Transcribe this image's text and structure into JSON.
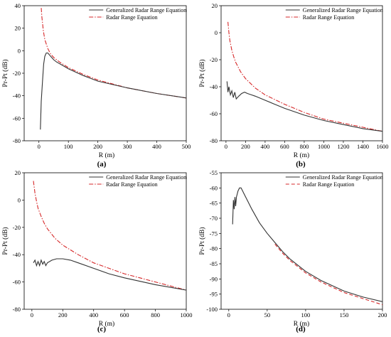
{
  "chart_data": [
    {
      "type": "line",
      "panel_label": "(a)",
      "xlabel": "R (m)",
      "ylabel": "Pr-Pt (dB)",
      "xlim": [
        -50,
        500
      ],
      "ylim": [
        -80,
        40
      ],
      "xticks": [
        0,
        100,
        200,
        300,
        400,
        500
      ],
      "yticks": [
        -80,
        -60,
        -40,
        -20,
        0,
        20,
        40
      ],
      "legend_position": "top-right",
      "series": [
        {
          "name": "Generalized Radar Range Equation",
          "color": "#333333",
          "dash": "solid",
          "x": [
            5,
            8,
            12,
            16,
            20,
            25,
            30,
            40,
            50,
            60,
            80,
            100,
            150,
            200,
            300,
            400,
            500
          ],
          "y": [
            -70,
            -45,
            -28,
            -12,
            -5,
            -2,
            -2,
            -5,
            -8,
            -10,
            -13,
            -16,
            -22,
            -27,
            -33,
            -38,
            -42
          ]
        },
        {
          "name": "Radar Range Equation",
          "color": "#d62728",
          "dash": "dashdot",
          "x": [
            8,
            10,
            15,
            20,
            30,
            40,
            50,
            70,
            100,
            150,
            200,
            300,
            400,
            500
          ],
          "y": [
            38,
            30,
            18,
            10,
            2,
            -3,
            -6,
            -10,
            -15,
            -21,
            -26,
            -33,
            -38,
            -42
          ]
        }
      ]
    },
    {
      "type": "line",
      "panel_label": "(b)",
      "xlabel": "R (m)",
      "ylabel": "Pr-Pt (dB)",
      "xlim": [
        -50,
        1600
      ],
      "ylim": [
        -80,
        20
      ],
      "xticks": [
        0,
        200,
        400,
        600,
        800,
        1000,
        1200,
        1400,
        1600
      ],
      "yticks": [
        -80,
        -60,
        -40,
        -20,
        0,
        20
      ],
      "legend_position": "top-right",
      "series": [
        {
          "name": "Generalized Radar Range Equation",
          "color": "#333333",
          "dash": "solid",
          "x": [
            10,
            20,
            30,
            45,
            60,
            75,
            90,
            105,
            130,
            160,
            190,
            220,
            260,
            300,
            400,
            500,
            600,
            800,
            1000,
            1200,
            1400,
            1600
          ],
          "y": [
            -36,
            -44,
            -40,
            -46,
            -43,
            -48,
            -44,
            -49,
            -47,
            -45,
            -44,
            -45,
            -46,
            -47,
            -50,
            -53,
            -56,
            -61,
            -65,
            -68,
            -71,
            -73
          ]
        },
        {
          "name": "Radar Range Equation",
          "color": "#d62728",
          "dash": "dashdot",
          "x": [
            20,
            30,
            40,
            60,
            80,
            100,
            150,
            200,
            300,
            400,
            600,
            800,
            1000,
            1200,
            1400,
            1600
          ],
          "y": [
            8,
            0,
            -6,
            -13,
            -18,
            -22,
            -29,
            -34,
            -41,
            -46,
            -53,
            -59,
            -64,
            -67,
            -70,
            -73
          ]
        }
      ]
    },
    {
      "type": "line",
      "panel_label": "(c)",
      "xlabel": "R (m)",
      "ylabel": "Pr-Pt (dB)",
      "xlim": [
        -50,
        1000
      ],
      "ylim": [
        -80,
        20
      ],
      "xticks": [
        0,
        200,
        400,
        600,
        800,
        1000
      ],
      "yticks": [
        -80,
        -60,
        -40,
        -20,
        0,
        20
      ],
      "legend_position": "top-right",
      "series": [
        {
          "name": "Generalized Radar Range Equation",
          "color": "#333333",
          "dash": "solid",
          "x": [
            10,
            20,
            30,
            40,
            50,
            60,
            70,
            80,
            90,
            100,
            130,
            160,
            200,
            250,
            300,
            400,
            500,
            600,
            800,
            1000
          ],
          "y": [
            -46,
            -44,
            -48,
            -45,
            -48,
            -44,
            -47,
            -45,
            -48,
            -46,
            -44,
            -43,
            -43,
            -44,
            -46,
            -50,
            -54,
            -57,
            -62,
            -66
          ]
        },
        {
          "name": "Radar Range Equation",
          "color": "#d62728",
          "dash": "dashdot",
          "x": [
            10,
            20,
            30,
            40,
            60,
            80,
            100,
            150,
            200,
            300,
            400,
            600,
            800,
            1000
          ],
          "y": [
            14,
            5,
            -1,
            -6,
            -12,
            -17,
            -21,
            -28,
            -33,
            -40,
            -46,
            -54,
            -60,
            -66
          ]
        }
      ]
    },
    {
      "type": "line",
      "panel_label": "(d)",
      "xlabel": "R (m)",
      "ylabel": "Pr-Pt (dB)",
      "xlim": [
        -10,
        200
      ],
      "ylim": [
        -100,
        -55
      ],
      "xticks": [
        0,
        50,
        100,
        150,
        200
      ],
      "yticks": [
        -100,
        -95,
        -90,
        -85,
        -80,
        -75,
        -70,
        -65,
        -60,
        -55
      ],
      "legend_position": "top-right",
      "series": [
        {
          "name": "Generalized Radar Range Equation",
          "color": "#333333",
          "dash": "solid",
          "x": [
            5,
            6,
            7,
            8,
            9,
            10,
            12,
            14,
            16,
            18,
            20,
            25,
            30,
            40,
            50,
            60,
            70,
            80,
            100,
            120,
            150,
            175,
            200
          ],
          "y": [
            -72,
            -64,
            -67,
            -63,
            -66,
            -63,
            -61,
            -60,
            -60,
            -61,
            -62,
            -64.5,
            -67,
            -71.5,
            -75,
            -78,
            -81,
            -83.5,
            -87.5,
            -90.5,
            -94,
            -96,
            -97.5
          ]
        },
        {
          "name": "Radar Range Equation",
          "color": "#d62728",
          "dash": "dashed",
          "x": [
            60,
            70,
            80,
            100,
            120,
            150,
            175,
            200
          ],
          "y": [
            -78.5,
            -81.5,
            -84,
            -88,
            -91,
            -94.5,
            -96.5,
            -98.5
          ]
        }
      ]
    }
  ]
}
